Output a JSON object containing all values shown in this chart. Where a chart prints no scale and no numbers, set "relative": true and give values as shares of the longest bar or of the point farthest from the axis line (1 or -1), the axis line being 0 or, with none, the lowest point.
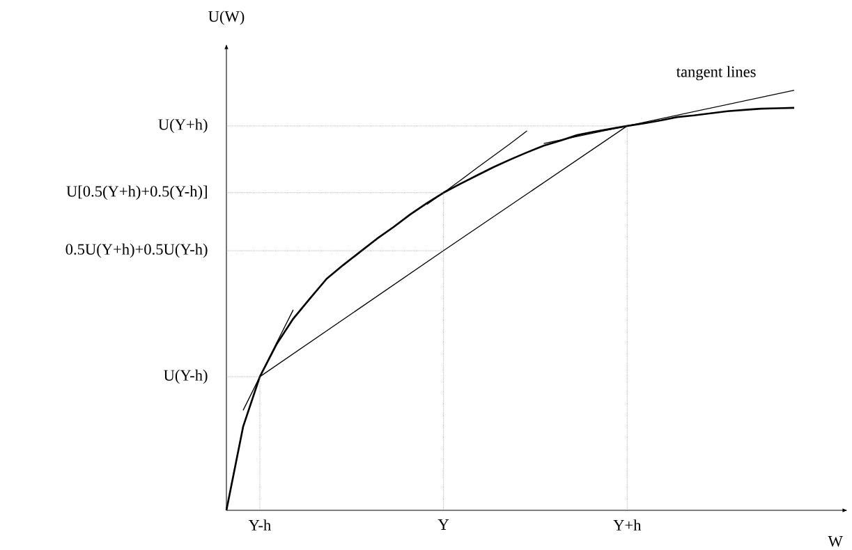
{
  "chart_data": {
    "type": "line",
    "relative": true,
    "xlabel": "W",
    "ylabel": "U(W)",
    "categories": [
      null,
      null,
      "Y-h",
      null,
      null,
      null,
      null,
      null,
      null,
      null,
      null,
      null,
      null,
      "Y",
      null,
      null,
      null,
      null,
      null,
      null,
      null,
      null,
      null,
      null,
      "Y+h",
      null,
      null,
      null,
      null,
      null,
      null,
      null,
      null,
      null,
      null
    ],
    "annotations": [
      "tangent lines"
    ],
    "series": [
      {
        "color": "#000000",
        "values": [
          0,
          0.199,
          0.318,
          0.395,
          0.456,
          0.504,
          0.551,
          0.584,
          0.615,
          0.646,
          0.674,
          0.704,
          0.731,
          0.756,
          0.777,
          0.797,
          0.817,
          0.835,
          0.852,
          0.868,
          0.88,
          0.893,
          0.901,
          0.908,
          0.915,
          0.921,
          0.928,
          0.936,
          0.94,
          0.945,
          0.95,
          0.953,
          0.956,
          0.957,
          0.958
        ]
      },
      {
        "color": "#000000",
        "values": [
          null,
          null,
          0.318,
          null,
          null,
          null,
          null,
          null,
          null,
          null,
          null,
          null,
          null,
          0.618,
          null,
          null,
          null,
          null,
          null,
          null,
          null,
          null,
          null,
          null,
          0.915,
          null,
          null,
          null,
          null,
          null,
          null,
          null,
          null,
          null,
          null
        ]
      },
      {
        "color": "#000000",
        "values": [
          null,
          0.238,
          0.318,
          0.398,
          0.477,
          null,
          null,
          null,
          null,
          null,
          null,
          null,
          null,
          null,
          null,
          null,
          null,
          null,
          null,
          null,
          null,
          null,
          null,
          null,
          null,
          null,
          null,
          null,
          null,
          null,
          null,
          null,
          null,
          null,
          null
        ]
      },
      {
        "color": "#000000",
        "values": [
          null,
          null,
          null,
          null,
          null,
          null,
          null,
          null,
          null,
          null,
          null,
          null,
          0.728,
          0.756,
          0.785,
          0.815,
          0.844,
          0.873,
          0.903,
          null,
          null,
          null,
          null,
          null,
          null,
          null,
          null,
          null,
          null,
          null,
          null,
          null,
          null,
          null,
          null
        ]
      },
      {
        "color": "#000000",
        "values": [
          null,
          null,
          null,
          null,
          null,
          null,
          null,
          null,
          null,
          null,
          null,
          null,
          null,
          null,
          null,
          null,
          null,
          null,
          null,
          0.873,
          null,
          null,
          null,
          null,
          0.915,
          null,
          null,
          null,
          null,
          null,
          null,
          null,
          null,
          null,
          1.0
        ]
      }
    ],
    "ref_lines": [
      {
        "axis": "y",
        "value": 0.915,
        "label": "U(Y+h)",
        "color": "#808080",
        "line_style": "dotted"
      },
      {
        "axis": "y",
        "value": 0.756,
        "label": "U[0.5(Y+h)+0.5(Y-h)]",
        "color": "#808080",
        "line_style": "dotted"
      },
      {
        "axis": "y",
        "value": 0.618,
        "label": "0.5U(Y+h)+0.5U(Y-h)",
        "color": "#808080",
        "line_style": "dotted"
      },
      {
        "axis": "y",
        "value": 0.318,
        "label": "U(Y-h)",
        "color": "#808080",
        "line_style": "dotted"
      },
      {
        "axis": "x",
        "value": "Y-h",
        "color": "#808080",
        "line_style": "dotted"
      },
      {
        "axis": "x",
        "value": "Y",
        "color": "#808080",
        "line_style": "dotted"
      },
      {
        "axis": "x",
        "value": "Y+h",
        "color": "#808080",
        "line_style": "dotted"
      }
    ]
  }
}
